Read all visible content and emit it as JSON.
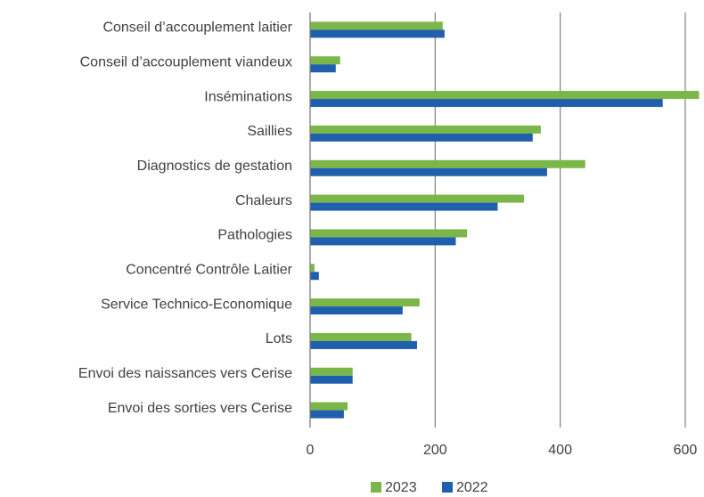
{
  "chart_data": {
    "type": "bar",
    "orientation": "horizontal",
    "categories": [
      "Conseil d’accouplement laitier",
      "Conseil d’accouplement viandeux",
      "Inséminations",
      "Saillies",
      "Diagnostics de gestation",
      "Chaleurs",
      "Pathologies",
      "Concentré Contrôle Laitier",
      "Service Technico-Economique",
      "Lots",
      "Envoi des naissances vers Cerise",
      "Envoi des sorties vers Cerise"
    ],
    "series": [
      {
        "name": "2023",
        "color": "#7ab648",
        "values": [
          212,
          48,
          622,
          369,
          440,
          342,
          251,
          7,
          175,
          162,
          68,
          60
        ]
      },
      {
        "name": "2022",
        "color": "#1f5fad",
        "values": [
          215,
          41,
          564,
          356,
          379,
          300,
          233,
          14,
          148,
          171,
          68,
          54
        ]
      }
    ],
    "xlim": [
      0,
      630
    ],
    "xticks": [
      0,
      200,
      400,
      600
    ],
    "grid": true,
    "legend": "bottom"
  }
}
